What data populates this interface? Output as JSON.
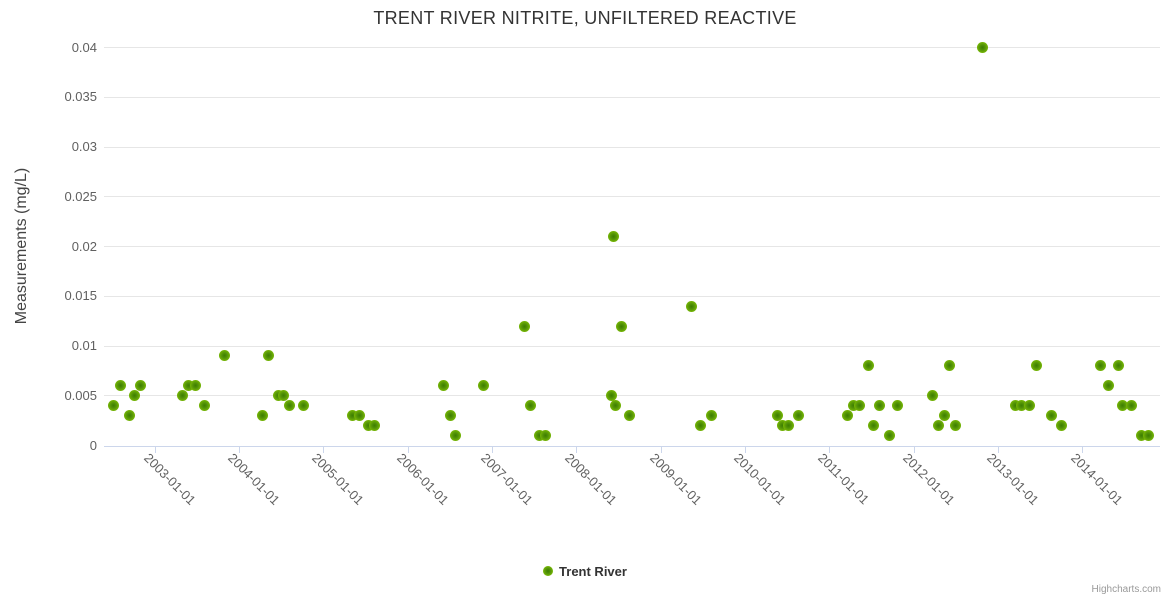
{
  "credits": "Highcharts.com",
  "colors": {
    "title": "#333333",
    "axis_title": "#444444",
    "tick_label": "#606060",
    "grid": "#e6e6e6",
    "axis_line": "#ccd6eb",
    "marker_outer": "#74b406",
    "marker_inner": "#3c7d00",
    "legend_text": "#333333",
    "credits_text": "#999999"
  },
  "chart_data": {
    "type": "scatter",
    "title": "TRENT RIVER NITRITE, UNFILTERED REACTIVE",
    "xlabel": "",
    "ylabel": "Measurements (mg/L)",
    "ylim": [
      0,
      0.04
    ],
    "y_ticks": [
      0,
      0.005,
      0.01,
      0.015,
      0.02,
      0.025,
      0.03,
      0.035,
      0.04
    ],
    "y_tick_labels": [
      "0",
      "0.005",
      "0.01",
      "0.015",
      "0.02",
      "0.025",
      "0.03",
      "0.035",
      "0.04"
    ],
    "xlim_decimal_years": [
      2002.4,
      2014.92
    ],
    "x_tick_years": [
      2003,
      2004,
      2005,
      2006,
      2007,
      2008,
      2009,
      2010,
      2011,
      2012,
      2013,
      2014
    ],
    "x_tick_labels": [
      "2003-01-01",
      "2004-01-01",
      "2005-01-01",
      "2006-01-01",
      "2007-01-01",
      "2008-01-01",
      "2009-01-01",
      "2010-01-01",
      "2011-01-01",
      "2012-01-01",
      "2013-01-01",
      "2014-01-01"
    ],
    "grid": "horizontal",
    "legend_position": "bottom-center",
    "series": [
      {
        "name": "Trent River",
        "color": "#74b406",
        "x_unit": "decimal_year",
        "points": [
          [
            2002.51,
            0.004
          ],
          [
            2002.6,
            0.006
          ],
          [
            2002.7,
            0.003
          ],
          [
            2002.76,
            0.005
          ],
          [
            2002.83,
            0.006
          ],
          [
            2003.33,
            0.005
          ],
          [
            2003.4,
            0.006
          ],
          [
            2003.49,
            0.006
          ],
          [
            2003.59,
            0.004
          ],
          [
            2003.83,
            0.009
          ],
          [
            2004.28,
            0.003
          ],
          [
            2004.35,
            0.009
          ],
          [
            2004.47,
            0.005
          ],
          [
            2004.53,
            0.005
          ],
          [
            2004.6,
            0.004
          ],
          [
            2004.77,
            0.004
          ],
          [
            2005.35,
            0.003
          ],
          [
            2005.43,
            0.003
          ],
          [
            2005.53,
            0.002
          ],
          [
            2005.61,
            0.002
          ],
          [
            2006.42,
            0.006
          ],
          [
            2006.51,
            0.003
          ],
          [
            2006.57,
            0.001
          ],
          [
            2006.9,
            0.006
          ],
          [
            2007.39,
            0.012
          ],
          [
            2007.46,
            0.004
          ],
          [
            2007.56,
            0.001
          ],
          [
            2007.64,
            0.001
          ],
          [
            2008.42,
            0.005
          ],
          [
            2008.44,
            0.021
          ],
          [
            2008.46,
            0.004
          ],
          [
            2008.53,
            0.012
          ],
          [
            2008.63,
            0.003
          ],
          [
            2009.36,
            0.014
          ],
          [
            2009.47,
            0.002
          ],
          [
            2009.6,
            0.003
          ],
          [
            2010.39,
            0.003
          ],
          [
            2010.44,
            0.002
          ],
          [
            2010.52,
            0.002
          ],
          [
            2010.63,
            0.003
          ],
          [
            2011.22,
            0.003
          ],
          [
            2011.29,
            0.004
          ],
          [
            2011.36,
            0.004
          ],
          [
            2011.46,
            0.008
          ],
          [
            2011.52,
            0.002
          ],
          [
            2011.6,
            0.004
          ],
          [
            2011.71,
            0.001
          ],
          [
            2011.81,
            0.004
          ],
          [
            2012.22,
            0.005
          ],
          [
            2012.29,
            0.002
          ],
          [
            2012.37,
            0.003
          ],
          [
            2012.43,
            0.008
          ],
          [
            2012.49,
            0.002
          ],
          [
            2012.82,
            0.04
          ],
          [
            2013.21,
            0.004
          ],
          [
            2013.28,
            0.004
          ],
          [
            2013.37,
            0.004
          ],
          [
            2013.46,
            0.008
          ],
          [
            2013.63,
            0.003
          ],
          [
            2013.75,
            0.002
          ],
          [
            2014.22,
            0.008
          ],
          [
            2014.31,
            0.006
          ],
          [
            2014.43,
            0.008
          ],
          [
            2014.48,
            0.004
          ],
          [
            2014.58,
            0.004
          ],
          [
            2014.7,
            0.001
          ],
          [
            2014.78,
            0.001
          ]
        ]
      }
    ]
  }
}
